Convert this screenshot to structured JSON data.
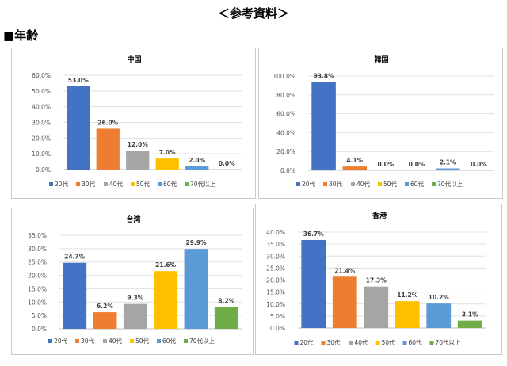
{
  "header": {
    "title": "＜参考資料＞"
  },
  "section": {
    "title": "■年齢"
  },
  "legend_categories": [
    "20代",
    "30代",
    "40代",
    "50代",
    "60代",
    "70代以上"
  ],
  "colors": [
    "#4472C4",
    "#ED7D31",
    "#A5A5A5",
    "#FFC000",
    "#5B9BD5",
    "#70AD47"
  ],
  "chart_data": [
    {
      "type": "bar",
      "title": "中国",
      "categories": [
        "20代",
        "30代",
        "40代",
        "50代",
        "60代",
        "70代以上"
      ],
      "values": [
        53.0,
        26.0,
        12.0,
        7.0,
        2.0,
        0.0
      ],
      "value_labels": [
        "53.0%",
        "26.0%",
        "12.0%",
        "7.0%",
        "2.0%",
        "0.0%"
      ],
      "yticks": [
        "0.0%",
        "10.0%",
        "20.0%",
        "30.0%",
        "40.0%",
        "50.0%",
        "60.0%"
      ],
      "ylim": [
        0,
        60
      ],
      "grid": true,
      "legend": "bottom"
    },
    {
      "type": "bar",
      "title": "韓国",
      "categories": [
        "20代",
        "30代",
        "40代",
        "50代",
        "60代",
        "70代以上"
      ],
      "values": [
        93.8,
        4.1,
        0.0,
        0.0,
        2.1,
        0.0
      ],
      "value_labels": [
        "93.8%",
        "4.1%",
        "0.0%",
        "0.0%",
        "2.1%",
        "0.0%"
      ],
      "yticks": [
        "0.0%",
        "20.0%",
        "40.0%",
        "60.0%",
        "80.0%",
        "100.0%"
      ],
      "ylim": [
        0,
        100
      ],
      "grid": true,
      "legend": "bottom"
    },
    {
      "type": "bar",
      "title": "台湾",
      "categories": [
        "20代",
        "30代",
        "40代",
        "50代",
        "60代",
        "70代以上"
      ],
      "values": [
        24.7,
        6.2,
        9.3,
        21.6,
        29.9,
        8.2
      ],
      "value_labels": [
        "24.7%",
        "6.2%",
        "9.3%",
        "21.6%",
        "29.9%",
        "8.2%"
      ],
      "yticks": [
        "0.0%",
        "5.0%",
        "10.0%",
        "15.0%",
        "20.0%",
        "25.0%",
        "30.0%",
        "35.0%"
      ],
      "ylim": [
        0,
        35
      ],
      "grid": true,
      "legend": "bottom"
    },
    {
      "type": "bar",
      "title": "香港",
      "categories": [
        "20代",
        "30代",
        "40代",
        "50代",
        "60代",
        "70代以上"
      ],
      "values": [
        36.7,
        21.4,
        17.3,
        11.2,
        10.2,
        3.1
      ],
      "value_labels": [
        "36.7%",
        "21.4%",
        "17.3%",
        "11.2%",
        "10.2%",
        "3.1%"
      ],
      "yticks": [
        "0.0%",
        "5.0%",
        "10.0%",
        "15.0%",
        "20.0%",
        "25.0%",
        "30.0%",
        "35.0%",
        "40.0%"
      ],
      "ylim": [
        0,
        40
      ],
      "grid": true,
      "legend": "bottom"
    }
  ]
}
